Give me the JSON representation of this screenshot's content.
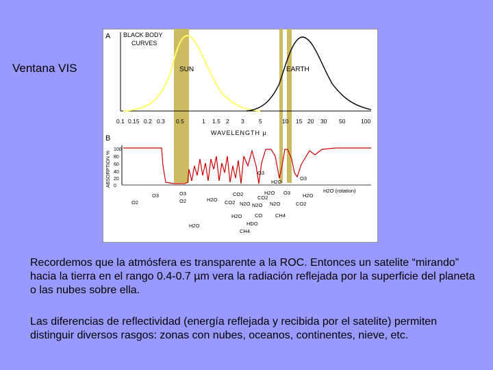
{
  "slide": {
    "title": "Ventana VIS",
    "paragraph1": "Recordemos que la atmósfera es transparente a la ROC. Entonces un satelite “mirando” hacia la tierra en el rango 0.4-0.7 µm vera la radiación reflejada por la superficie del planeta o las nubes sobre ella.",
    "paragraph2": "Las diferencias de reflectividad (energía reflejada y recibida por el satelite) permiten distinguir diversos rasgos: zonas con nubes, oceanos, continentes, nieve, etc."
  },
  "figure": {
    "panel_a": {
      "letter": "A",
      "heading_line1": "BLACK BODY",
      "heading_line2": "CURVES",
      "sun_label": "SUN",
      "earth_label": "EARTH",
      "sun_color": "#ffff66",
      "earth_color": "#000000"
    },
    "x_ticks": [
      "0.1",
      "0.15",
      "0.2",
      "0.3",
      "0.5",
      "1",
      "1.5",
      "2",
      "3",
      "5",
      "10",
      "15",
      "20",
      "30",
      "50",
      "100"
    ],
    "x_axis_label": "WAVELENGTH µ",
    "panel_b": {
      "letter": "B",
      "y_axis_label": "ABSORPTION %",
      "y_ticks": [
        "100",
        "80",
        "60",
        "40",
        "20",
        "0"
      ],
      "absorption_color": "#cc0000",
      "absorbers": [
        "O2",
        "O3",
        "O3",
        "H2O",
        "CO2",
        "O2",
        "O3",
        "CO2",
        "N2O",
        "H2O",
        "O3",
        "O3",
        "H2O (rotation)",
        "H2O",
        "H2O",
        "CO2",
        "H2O",
        "N2O",
        "CO2",
        "H2O",
        "N2O",
        "CO",
        "CH4",
        "HDO",
        "CH4"
      ]
    },
    "window_band_color": "#c8b450"
  }
}
